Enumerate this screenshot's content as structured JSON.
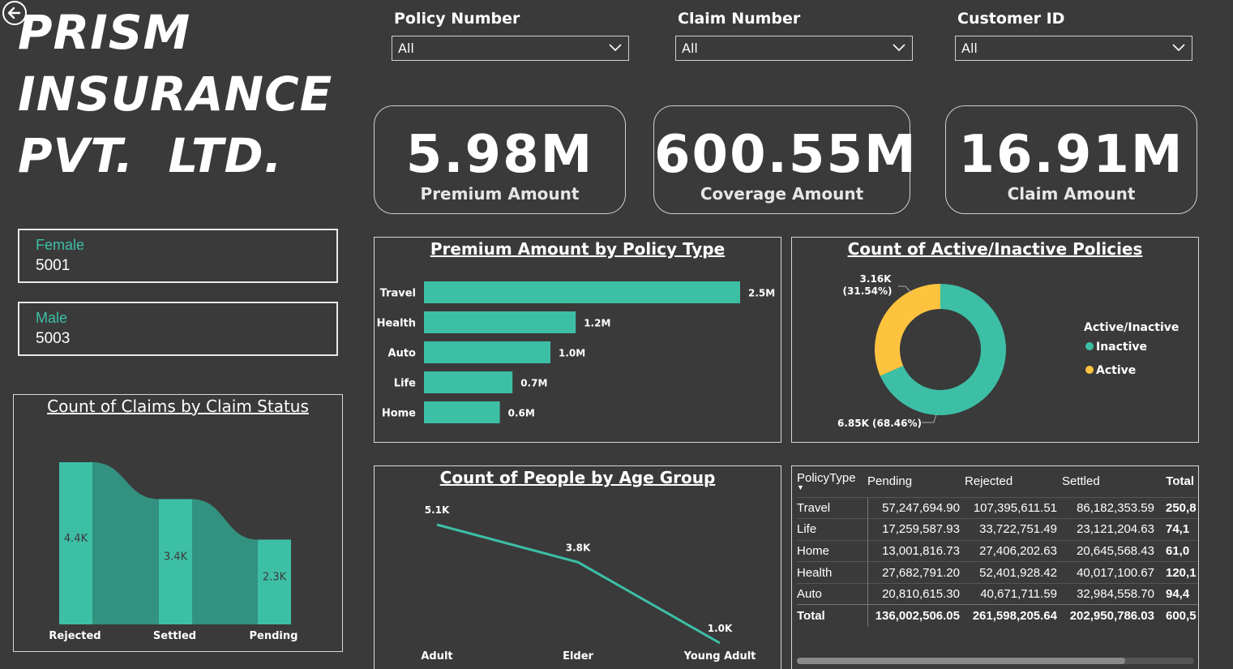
{
  "brand": {
    "line1": "PRISM",
    "line2": "INSURANCE",
    "line3": "PVT.  LTD."
  },
  "slicers": [
    {
      "label": "Policy Number",
      "value": "All"
    },
    {
      "label": "Claim Number",
      "value": "All"
    },
    {
      "label": "Customer ID",
      "value": "All"
    }
  ],
  "kpis": [
    {
      "value": "5.98M",
      "label": "Premium Amount"
    },
    {
      "value": "600.55M",
      "label": "Coverage Amount"
    },
    {
      "value": "16.91M",
      "label": "Claim Amount"
    }
  ],
  "gender_cards": [
    {
      "label": "Female",
      "value": "5001"
    },
    {
      "label": "Male",
      "value": "5003"
    }
  ],
  "colors": {
    "background": "#3a3a3a",
    "teal": "#3dbfa6",
    "teal_dark": "#33917f",
    "yellow": "#fdc33f",
    "white": "#ffffff"
  },
  "icons": {
    "back": "circle-arrow-left-icon",
    "dropdown": "chevron-down-icon"
  },
  "chart_data": [
    {
      "type": "bar",
      "orientation": "horizontal",
      "title": "Premium Amount by Policy Type",
      "categories": [
        "Travel",
        "Health",
        "Auto",
        "Life",
        "Home"
      ],
      "values": [
        2.5,
        1.2,
        1.0,
        0.7,
        0.6
      ],
      "value_labels": [
        "2.5M",
        "1.2M",
        "1.0M",
        "0.7M",
        "0.6M"
      ],
      "unit": "M"
    },
    {
      "type": "pie",
      "variant": "donut",
      "title": "Count of Active/Inactive Policies",
      "legend_title": "Active/Inactive",
      "legend_position": "right",
      "slices": [
        {
          "name": "Inactive",
          "value": 6.85,
          "label": "6.85K (68.46%)",
          "color": "#3dbfa6"
        },
        {
          "name": "Active",
          "value": 3.16,
          "label_line1": "3.16K",
          "label_line2": "(31.54%)",
          "color": "#fdc33f"
        }
      ]
    },
    {
      "type": "area",
      "variant": "ribbon",
      "title": "Count of Claims by Claim Status",
      "categories": [
        "Rejected",
        "Settled",
        "Pending"
      ],
      "values": [
        4.4,
        3.4,
        2.3
      ],
      "value_labels": [
        "4.4K",
        "3.4K",
        "2.3K"
      ],
      "unit": "K"
    },
    {
      "type": "line",
      "title": "Count of People by Age Group",
      "categories": [
        "Adult",
        "Elder",
        "Young Adult"
      ],
      "values": [
        5.1,
        3.8,
        1.0
      ],
      "value_labels": [
        "5.1K",
        "3.8K",
        "1.0K"
      ],
      "unit": "K"
    },
    {
      "type": "table",
      "columns": [
        "PolicyType",
        "Pending",
        "Rejected",
        "Settled",
        "Total"
      ],
      "rows": [
        [
          "Travel",
          "57,247,694.90",
          "107,395,611.51",
          "86,182,353.59",
          "250,8"
        ],
        [
          "Life",
          "17,259,587.93",
          "33,722,751.49",
          "23,121,204.63",
          "74,1"
        ],
        [
          "Home",
          "13,001,816.73",
          "27,406,202.63",
          "20,645,568.43",
          "61,0"
        ],
        [
          "Health",
          "27,682,791.20",
          "52,401,928.42",
          "40,017,100.67",
          "120,1"
        ],
        [
          "Auto",
          "20,810,615.30",
          "40,671,711.59",
          "32,984,558.70",
          "94,4"
        ]
      ],
      "total_row": [
        "Total",
        "136,002,506.05",
        "261,598,205.64",
        "202,950,786.03",
        "600,5"
      ]
    }
  ]
}
